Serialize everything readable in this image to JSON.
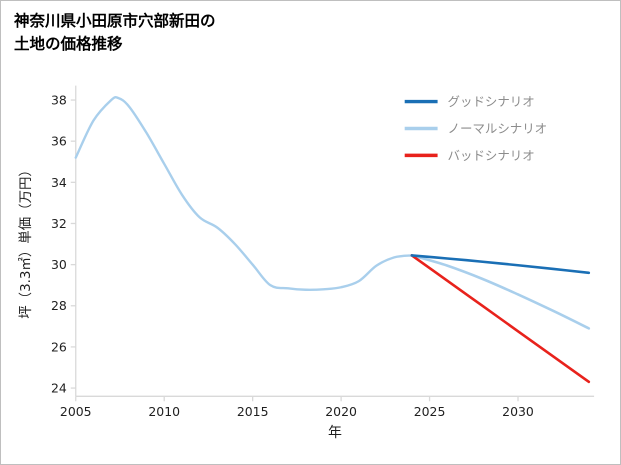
{
  "title": {
    "line1": "神奈川県小田原市穴部新田の",
    "line2": "土地の価格推移"
  },
  "chart_data": {
    "type": "line",
    "title": "神奈川県小田原市穴部新田の土地の価格推移",
    "xlabel": "年",
    "ylabel": "坪（3.3㎡）単価（万円）",
    "xlim": [
      2005,
      2034.3
    ],
    "ylim": [
      23.6,
      38.7
    ],
    "xticks": [
      2005,
      2010,
      2015,
      2020,
      2025,
      2030
    ],
    "yticks": [
      24,
      26,
      28,
      30,
      32,
      34,
      36,
      38
    ],
    "grid": false,
    "legend_position": "upper-right",
    "series": [
      {
        "key": "history",
        "color": "#a9cfec",
        "width": 2.4,
        "x": [
          2005,
          2006,
          2007,
          2007.4,
          2008,
          2009,
          2010,
          2011,
          2012,
          2013,
          2014,
          2015,
          2016,
          2017,
          2018,
          2019,
          2020,
          2021,
          2022,
          2023,
          2024
        ],
        "y": [
          35.2,
          37.0,
          38.0,
          38.1,
          37.7,
          36.4,
          34.9,
          33.4,
          32.3,
          31.8,
          31.0,
          30.0,
          29.0,
          28.85,
          28.78,
          28.8,
          28.9,
          29.2,
          29.95,
          30.35,
          30.45
        ]
      },
      {
        "key": "normal",
        "name": "ノーマルシナリオ",
        "color": "#a9cfec",
        "width": 2.6,
        "x": [
          2024,
          2026,
          2028,
          2030,
          2032,
          2034
        ],
        "y": [
          30.45,
          29.95,
          29.3,
          28.55,
          27.75,
          26.9
        ]
      },
      {
        "key": "bad",
        "name": "バッドシナリオ",
        "color": "#e8221c",
        "width": 2.6,
        "x": [
          2024,
          2026,
          2028,
          2030,
          2032,
          2034
        ],
        "y": [
          30.45,
          29.22,
          27.99,
          26.76,
          25.53,
          24.3
        ]
      },
      {
        "key": "good",
        "name": "グッドシナリオ",
        "color": "#1a6fb5",
        "width": 2.6,
        "x": [
          2024,
          2026,
          2028,
          2030,
          2032,
          2034
        ],
        "y": [
          30.45,
          30.3,
          30.14,
          29.97,
          29.79,
          29.6
        ]
      }
    ],
    "legend": [
      {
        "label": "グッドシナリオ",
        "color": "#1a6fb5"
      },
      {
        "label": "ノーマルシナリオ",
        "color": "#a9cfec"
      },
      {
        "label": "バッドシナリオ",
        "color": "#e8221c"
      }
    ],
    "colors": {
      "axis": "#d9d9d9",
      "tick_text": "#1f1f1f",
      "legend_text": "#8c8c8c",
      "background": "#ffffff"
    }
  }
}
